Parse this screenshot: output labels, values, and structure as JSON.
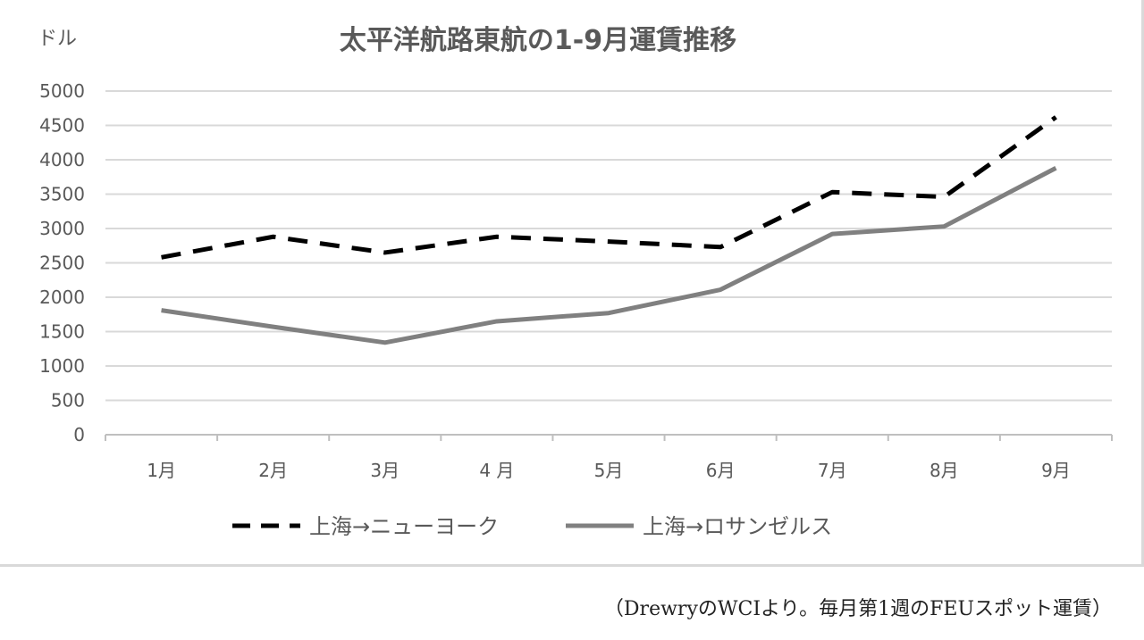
{
  "chart_data": {
    "type": "line",
    "title": "太平洋航路東航の1-9月運賃推移",
    "ylabel": "ドル",
    "xlabel": "",
    "categories": [
      "1月",
      "2月",
      "3月",
      "4 月",
      "5月",
      "6月",
      "7月",
      "8月",
      "9月"
    ],
    "ylim": [
      0,
      5000
    ],
    "yticks": [
      "0",
      "500",
      "1000",
      "1500",
      "2000",
      "2500",
      "3000",
      "3500",
      "4000",
      "4500",
      "5000"
    ],
    "grid": true,
    "legend_position": "bottom",
    "series": [
      {
        "name": "上海→ニューヨーク",
        "style": "dashed",
        "color": "#000000",
        "values": [
          2580,
          2880,
          2650,
          2880,
          2810,
          2730,
          3530,
          3460,
          4620
        ]
      },
      {
        "name": "上海→ロサンゼルス",
        "style": "solid",
        "color": "#808080",
        "values": [
          1810,
          1570,
          1340,
          1650,
          1770,
          2110,
          2920,
          3030,
          3880
        ]
      }
    ]
  },
  "source_note": "（DrewryのWCIより。毎月第1週のFEUスポット運賃）"
}
